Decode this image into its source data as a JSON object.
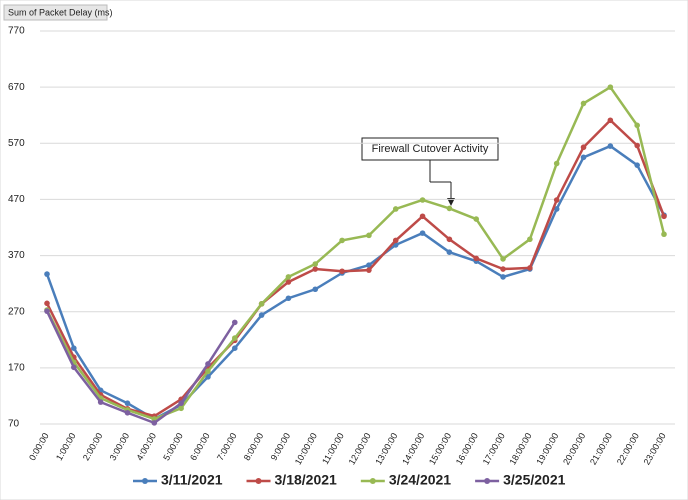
{
  "chart_data": {
    "type": "line",
    "y_axis_title": "Sum of Packet Delay (ms)",
    "annotation": "Firewall Cutover Activity",
    "categories": [
      "0:00:00",
      "1:00:00",
      "2:00:00",
      "3:00:00",
      "4:00:00",
      "5:00:00",
      "6:00:00",
      "7:00:00",
      "8:00:00",
      "9:00:00",
      "10:00:00",
      "11:00:00",
      "12:00:00",
      "13:00:00",
      "14:00:00",
      "15:00:00",
      "16:00:00",
      "17:00:00",
      "18:00:00",
      "19:00:00",
      "20:00:00",
      "21:00:00",
      "22:00:00",
      "23:00:00"
    ],
    "series": [
      {
        "name": "3/11/2021",
        "color": "#4a7ebb",
        "values": [
          337,
          205,
          130,
          107,
          79,
          104,
          154,
          205,
          264,
          294,
          310,
          339,
          353,
          389,
          410,
          376,
          360,
          332,
          346,
          453,
          545,
          565,
          531,
          442
        ]
      },
      {
        "name": "3/18/2021",
        "color": "#be4b48",
        "values": [
          285,
          189,
          122,
          97,
          84,
          114,
          170,
          219,
          284,
          323,
          346,
          342,
          344,
          397,
          440,
          399,
          365,
          346,
          348,
          469,
          563,
          611,
          566,
          440
        ]
      },
      {
        "name": "3/24/2021",
        "color": "#98b954",
        "values": [
          273,
          180,
          116,
          95,
          79,
          98,
          164,
          223,
          284,
          332,
          355,
          397,
          406,
          453,
          469,
          454,
          435,
          364,
          399,
          534,
          641,
          670,
          602,
          408
        ]
      },
      {
        "name": "3/25/2021",
        "color": "#7d60a0",
        "values": [
          271,
          171,
          109,
          90,
          72,
          107,
          177,
          251,
          null,
          null,
          null,
          null,
          null,
          null,
          null,
          null,
          null,
          null,
          null,
          null,
          null,
          null,
          null,
          null
        ]
      }
    ],
    "ylim": [
      70,
      770
    ],
    "yticks": [
      70,
      170,
      270,
      370,
      470,
      570,
      670,
      770
    ],
    "grid": true,
    "legend": "bottom"
  }
}
